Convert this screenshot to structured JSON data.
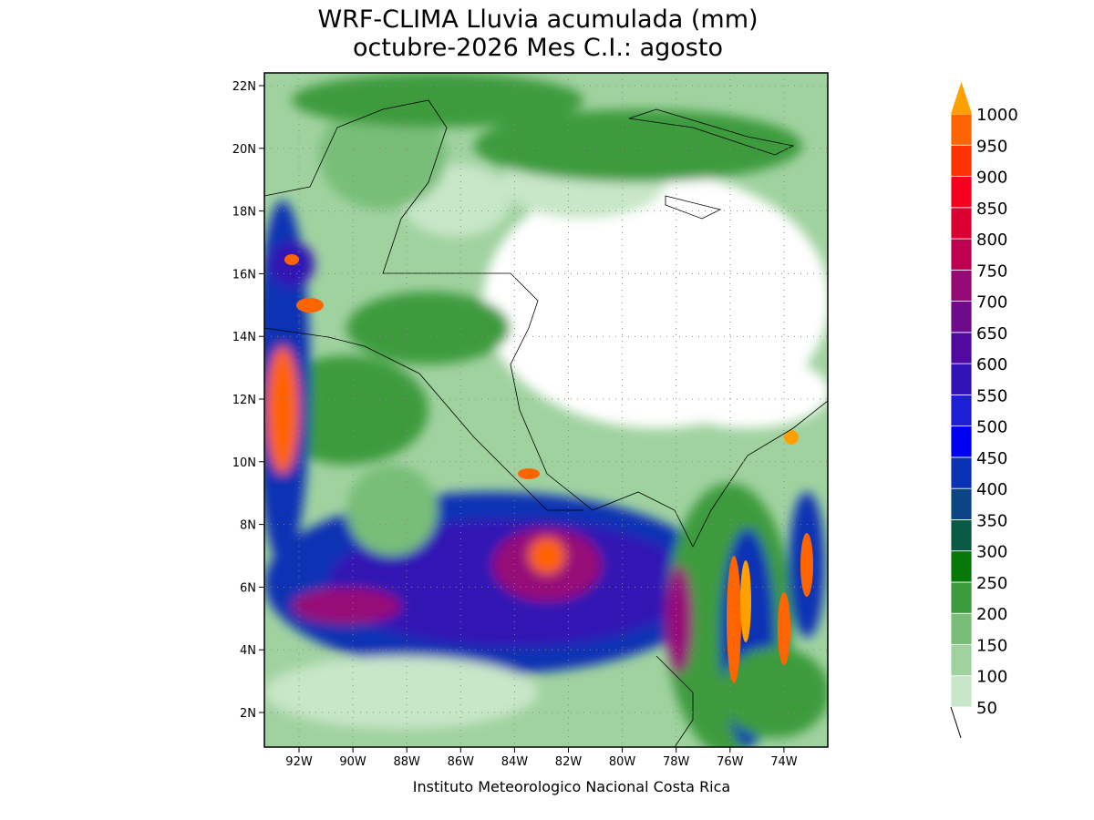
{
  "title": [
    "WRF-CLIMA Lluvia acumulada (mm)",
    "octubre-2026 Mes C.I.: agosto"
  ],
  "map": {
    "lat_labels": [
      "22N",
      "20N",
      "18N",
      "16N",
      "14N",
      "12N",
      "10N",
      "8N",
      "6N",
      "4N",
      "2N"
    ],
    "lon_labels": [
      "92W",
      "90W",
      "88W",
      "86W",
      "84W",
      "82W",
      "80W",
      "78W",
      "76W",
      "74W"
    ]
  },
  "colorbar": {
    "levels": [
      50,
      100,
      150,
      200,
      250,
      300,
      350,
      400,
      450,
      500,
      550,
      600,
      650,
      700,
      750,
      800,
      850,
      900,
      950,
      1000
    ],
    "colors": [
      "#c8e6c8",
      "#a0d2a0",
      "#78be78",
      "#3c9b3c",
      "#087808",
      "#0a5a46",
      "#0a4686",
      "#0a32b4",
      "#0000f0",
      "#1e1ed2",
      "#3214b4",
      "#500aa0",
      "#6e0a8c",
      "#960a78",
      "#be0050",
      "#dc0032",
      "#f5001e",
      "#ff3200",
      "#ff6400",
      "#ffa000"
    ]
  },
  "footer": "Instituto Meteorologico Nacional Costa Rica"
}
